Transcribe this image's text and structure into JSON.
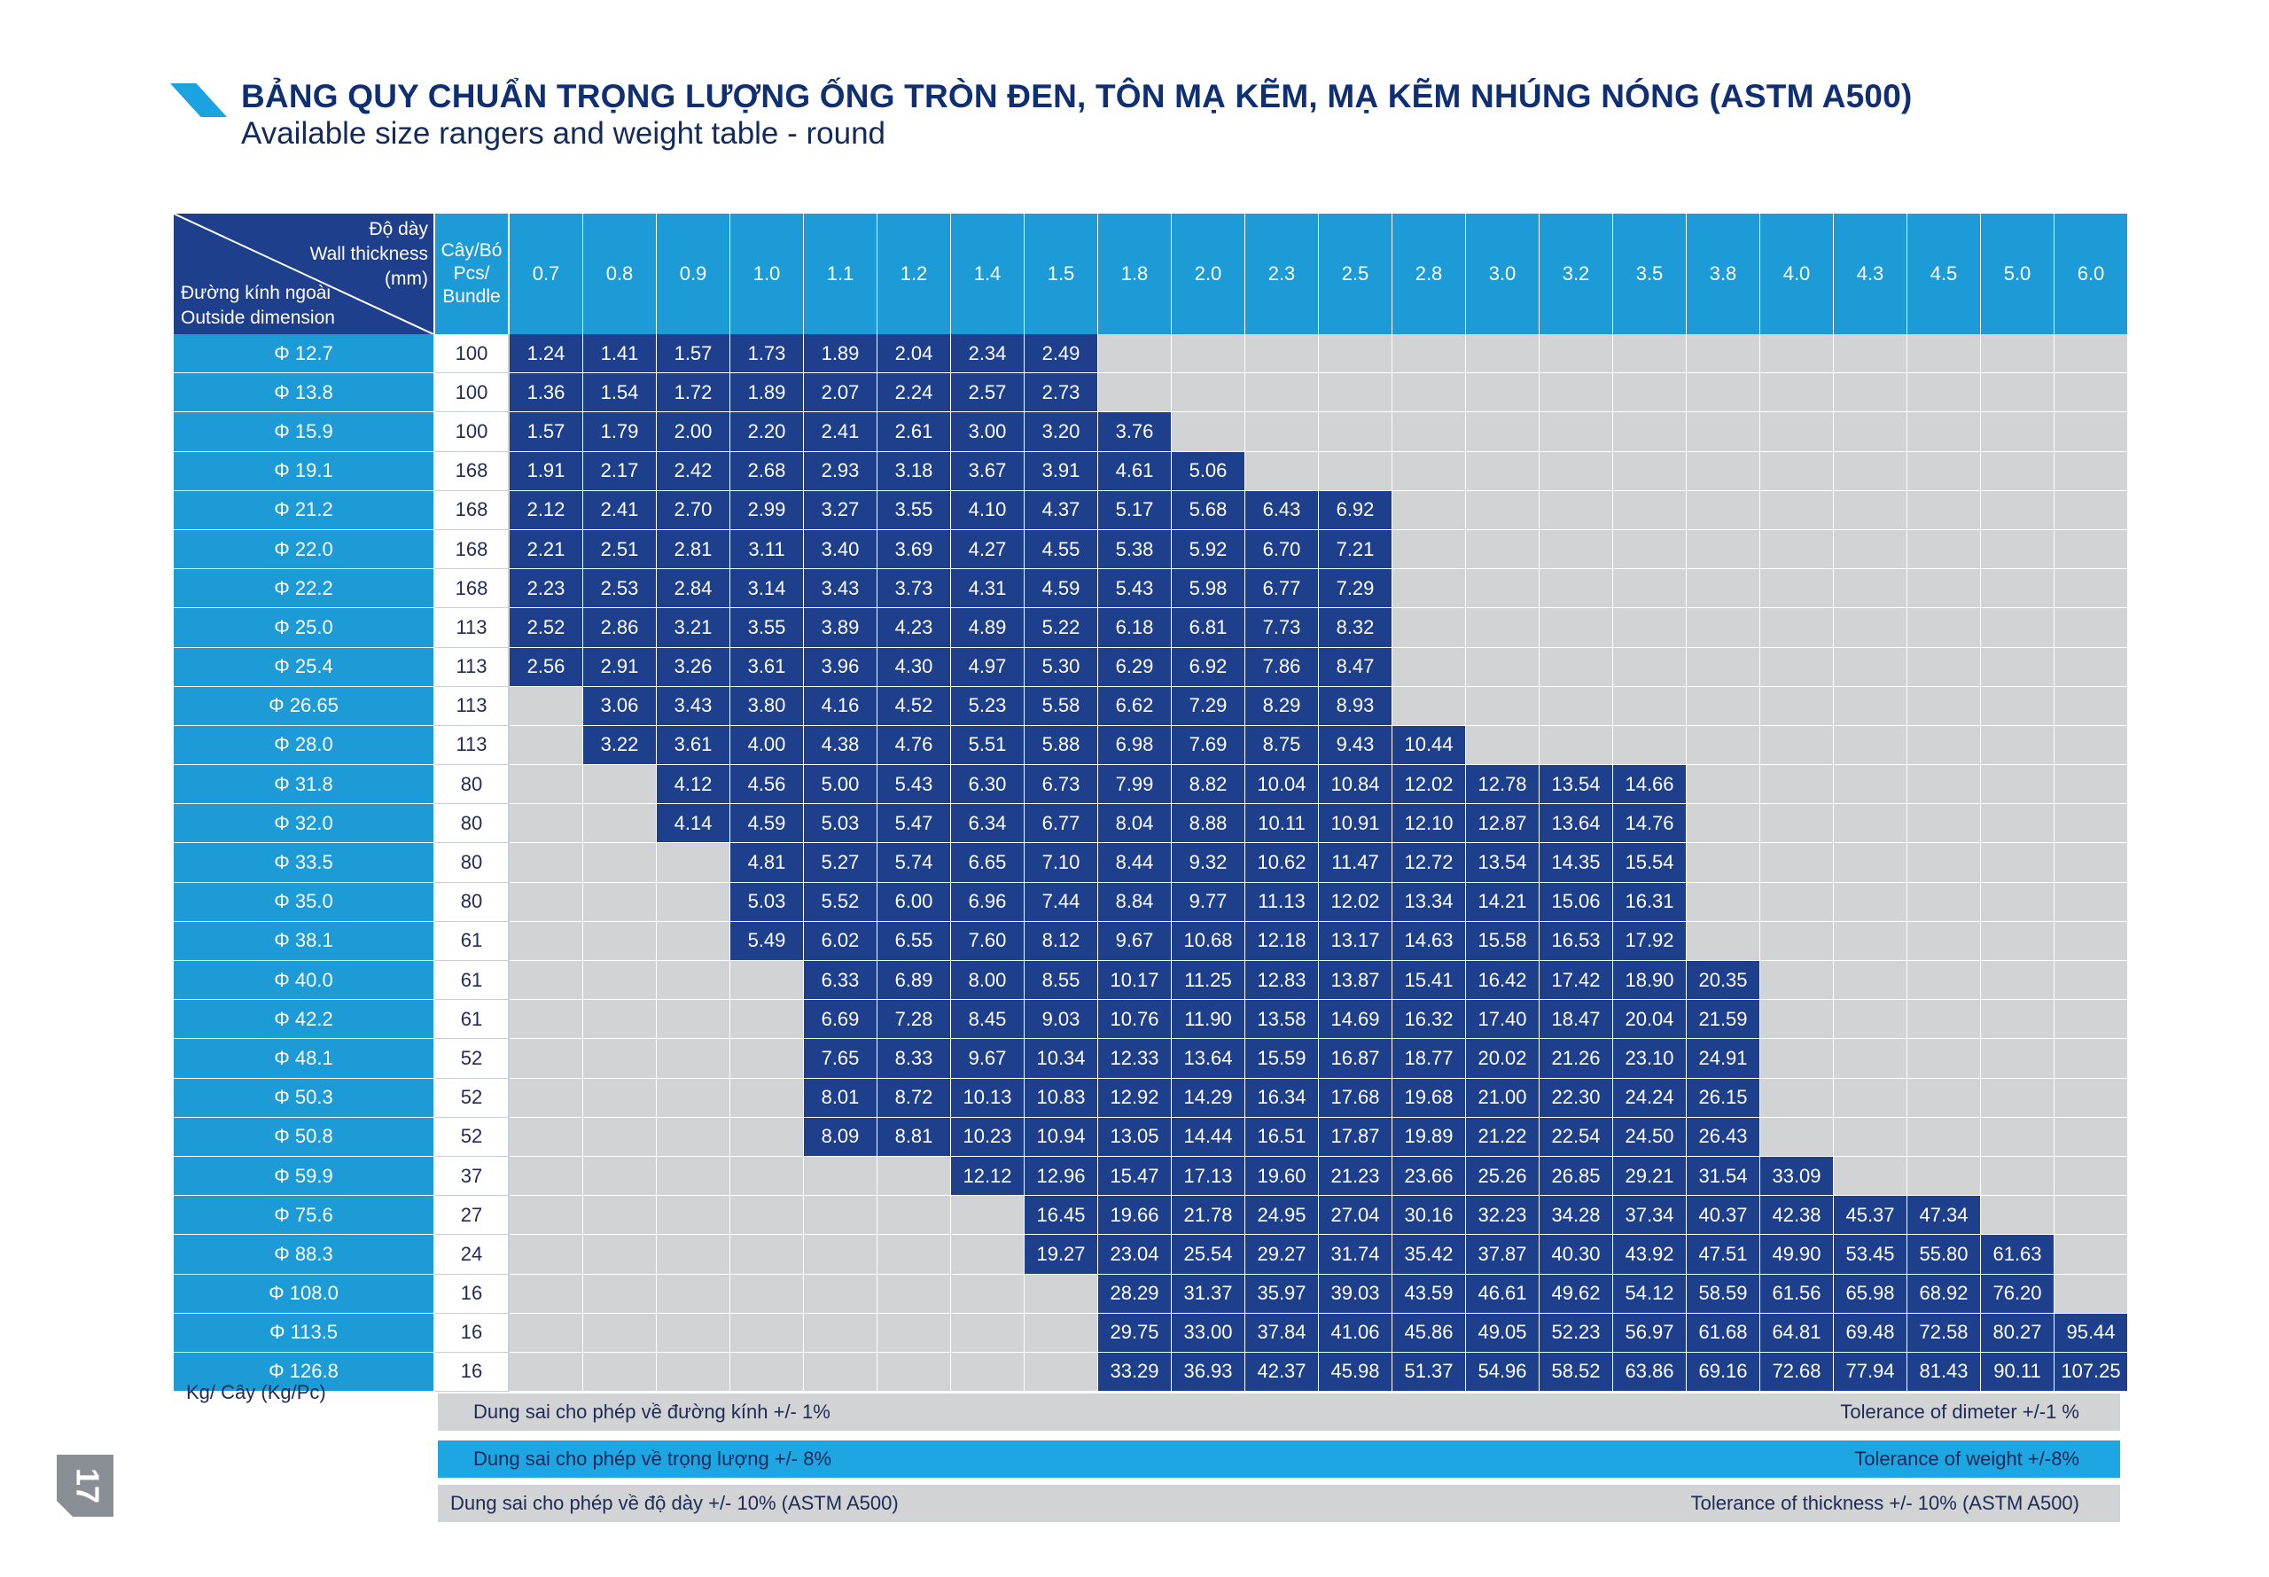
{
  "colors": {
    "navy": "#1e3f8b",
    "blue": "#1c9bd7",
    "empty": "#d1d3d5",
    "title": "#0f2f74"
  },
  "header": {
    "title": "BẢNG QUY CHUẨN TRỌNG LƯỢNG ỐNG TRÒN ĐEN, TÔN MẠ KẼM, MẠ KẼM NHÚNG NÓNG (ASTM A500)",
    "subtitle": "Available size rangers and weight table - round"
  },
  "table": {
    "corner": {
      "wall_vi": "Độ dày",
      "wall_en": "Wall thickness",
      "wall_unit": "(mm)",
      "dia_vi": "Đường kính ngoài",
      "dia_en": "Outside dimension"
    },
    "bundle_header": [
      "Cây/Bó",
      "Pcs/",
      "Bundle"
    ],
    "thickness": [
      "0.7",
      "0.8",
      "0.9",
      "1.0",
      "1.1",
      "1.2",
      "1.4",
      "1.5",
      "1.8",
      "2.0",
      "2.3",
      "2.5",
      "2.8",
      "3.0",
      "3.2",
      "3.5",
      "3.8",
      "4.0",
      "4.3",
      "4.5",
      "5.0",
      "6.0"
    ],
    "rows": [
      {
        "size": "Φ 12.7",
        "bundle": "100",
        "values": [
          "1.24",
          "1.41",
          "1.57",
          "1.73",
          "1.89",
          "2.04",
          "2.34",
          "2.49",
          "",
          "",
          "",
          "",
          "",
          "",
          "",
          "",
          "",
          "",
          "",
          "",
          "",
          ""
        ]
      },
      {
        "size": "Φ 13.8",
        "bundle": "100",
        "values": [
          "1.36",
          "1.54",
          "1.72",
          "1.89",
          "2.07",
          "2.24",
          "2.57",
          "2.73",
          "",
          "",
          "",
          "",
          "",
          "",
          "",
          "",
          "",
          "",
          "",
          "",
          "",
          ""
        ]
      },
      {
        "size": "Φ 15.9",
        "bundle": "100",
        "values": [
          "1.57",
          "1.79",
          "2.00",
          "2.20",
          "2.41",
          "2.61",
          "3.00",
          "3.20",
          "3.76",
          "",
          "",
          "",
          "",
          "",
          "",
          "",
          "",
          "",
          "",
          "",
          "",
          ""
        ]
      },
      {
        "size": "Φ 19.1",
        "bundle": "168",
        "values": [
          "1.91",
          "2.17",
          "2.42",
          "2.68",
          "2.93",
          "3.18",
          "3.67",
          "3.91",
          "4.61",
          "5.06",
          "",
          "",
          "",
          "",
          "",
          "",
          "",
          "",
          "",
          "",
          "",
          ""
        ]
      },
      {
        "size": "Φ 21.2",
        "bundle": "168",
        "values": [
          "2.12",
          "2.41",
          "2.70",
          "2.99",
          "3.27",
          "3.55",
          "4.10",
          "4.37",
          "5.17",
          "5.68",
          "6.43",
          "6.92",
          "",
          "",
          "",
          "",
          "",
          "",
          "",
          "",
          "",
          ""
        ]
      },
      {
        "size": "Φ 22.0",
        "bundle": "168",
        "values": [
          "2.21",
          "2.51",
          "2.81",
          "3.11",
          "3.40",
          "3.69",
          "4.27",
          "4.55",
          "5.38",
          "5.92",
          "6.70",
          "7.21",
          "",
          "",
          "",
          "",
          "",
          "",
          "",
          "",
          "",
          ""
        ]
      },
      {
        "size": "Φ 22.2",
        "bundle": "168",
        "values": [
          "2.23",
          "2.53",
          "2.84",
          "3.14",
          "3.43",
          "3.73",
          "4.31",
          "4.59",
          "5.43",
          "5.98",
          "6.77",
          "7.29",
          "",
          "",
          "",
          "",
          "",
          "",
          "",
          "",
          "",
          ""
        ]
      },
      {
        "size": "Φ 25.0",
        "bundle": "113",
        "values": [
          "2.52",
          "2.86",
          "3.21",
          "3.55",
          "3.89",
          "4.23",
          "4.89",
          "5.22",
          "6.18",
          "6.81",
          "7.73",
          "8.32",
          "",
          "",
          "",
          "",
          "",
          "",
          "",
          "",
          "",
          ""
        ]
      },
      {
        "size": "Φ 25.4",
        "bundle": "113",
        "values": [
          "2.56",
          "2.91",
          "3.26",
          "3.61",
          "3.96",
          "4.30",
          "4.97",
          "5.30",
          "6.29",
          "6.92",
          "7.86",
          "8.47",
          "",
          "",
          "",
          "",
          "",
          "",
          "",
          "",
          "",
          ""
        ]
      },
      {
        "size": "Φ 26.65",
        "bundle": "113",
        "values": [
          "",
          "3.06",
          "3.43",
          "3.80",
          "4.16",
          "4.52",
          "5.23",
          "5.58",
          "6.62",
          "7.29",
          "8.29",
          "8.93",
          "",
          "",
          "",
          "",
          "",
          "",
          "",
          "",
          "",
          ""
        ]
      },
      {
        "size": "Φ 28.0",
        "bundle": "113",
        "values": [
          "",
          "3.22",
          "3.61",
          "4.00",
          "4.38",
          "4.76",
          "5.51",
          "5.88",
          "6.98",
          "7.69",
          "8.75",
          "9.43",
          "10.44",
          "",
          "",
          "",
          "",
          "",
          "",
          "",
          "",
          ""
        ]
      },
      {
        "size": "Φ 31.8",
        "bundle": "80",
        "values": [
          "",
          "",
          "4.12",
          "4.56",
          "5.00",
          "5.43",
          "6.30",
          "6.73",
          "7.99",
          "8.82",
          "10.04",
          "10.84",
          "12.02",
          "12.78",
          "13.54",
          "14.66",
          "",
          "",
          "",
          "",
          "",
          ""
        ]
      },
      {
        "size": "Φ 32.0",
        "bundle": "80",
        "values": [
          "",
          "",
          "4.14",
          "4.59",
          "5.03",
          "5.47",
          "6.34",
          "6.77",
          "8.04",
          "8.88",
          "10.11",
          "10.91",
          "12.10",
          "12.87",
          "13.64",
          "14.76",
          "",
          "",
          "",
          "",
          "",
          ""
        ]
      },
      {
        "size": "Φ 33.5",
        "bundle": "80",
        "values": [
          "",
          "",
          "",
          "4.81",
          "5.27",
          "5.74",
          "6.65",
          "7.10",
          "8.44",
          "9.32",
          "10.62",
          "11.47",
          "12.72",
          "13.54",
          "14.35",
          "15.54",
          "",
          "",
          "",
          "",
          "",
          ""
        ]
      },
      {
        "size": "Φ 35.0",
        "bundle": "80",
        "values": [
          "",
          "",
          "",
          "5.03",
          "5.52",
          "6.00",
          "6.96",
          "7.44",
          "8.84",
          "9.77",
          "11.13",
          "12.02",
          "13.34",
          "14.21",
          "15.06",
          "16.31",
          "",
          "",
          "",
          "",
          "",
          ""
        ]
      },
      {
        "size": "Φ 38.1",
        "bundle": "61",
        "values": [
          "",
          "",
          "",
          "5.49",
          "6.02",
          "6.55",
          "7.60",
          "8.12",
          "9.67",
          "10.68",
          "12.18",
          "13.17",
          "14.63",
          "15.58",
          "16.53",
          "17.92",
          "",
          "",
          "",
          "",
          "",
          ""
        ]
      },
      {
        "size": "Φ 40.0",
        "bundle": "61",
        "values": [
          "",
          "",
          "",
          "",
          "6.33",
          "6.89",
          "8.00",
          "8.55",
          "10.17",
          "11.25",
          "12.83",
          "13.87",
          "15.41",
          "16.42",
          "17.42",
          "18.90",
          "20.35",
          "",
          "",
          "",
          "",
          ""
        ]
      },
      {
        "size": "Φ 42.2",
        "bundle": "61",
        "values": [
          "",
          "",
          "",
          "",
          "6.69",
          "7.28",
          "8.45",
          "9.03",
          "10.76",
          "11.90",
          "13.58",
          "14.69",
          "16.32",
          "17.40",
          "18.47",
          "20.04",
          "21.59",
          "",
          "",
          "",
          "",
          ""
        ]
      },
      {
        "size": "Φ 48.1",
        "bundle": "52",
        "values": [
          "",
          "",
          "",
          "",
          "7.65",
          "8.33",
          "9.67",
          "10.34",
          "12.33",
          "13.64",
          "15.59",
          "16.87",
          "18.77",
          "20.02",
          "21.26",
          "23.10",
          "24.91",
          "",
          "",
          "",
          "",
          ""
        ]
      },
      {
        "size": "Φ 50.3",
        "bundle": "52",
        "values": [
          "",
          "",
          "",
          "",
          "8.01",
          "8.72",
          "10.13",
          "10.83",
          "12.92",
          "14.29",
          "16.34",
          "17.68",
          "19.68",
          "21.00",
          "22.30",
          "24.24",
          "26.15",
          "",
          "",
          "",
          "",
          ""
        ]
      },
      {
        "size": "Φ 50.8",
        "bundle": "52",
        "values": [
          "",
          "",
          "",
          "",
          "8.09",
          "8.81",
          "10.23",
          "10.94",
          "13.05",
          "14.44",
          "16.51",
          "17.87",
          "19.89",
          "21.22",
          "22.54",
          "24.50",
          "26.43",
          "",
          "",
          "",
          "",
          ""
        ]
      },
      {
        "size": "Φ 59.9",
        "bundle": "37",
        "values": [
          "",
          "",
          "",
          "",
          "",
          "",
          "12.12",
          "12.96",
          "15.47",
          "17.13",
          "19.60",
          "21.23",
          "23.66",
          "25.26",
          "26.85",
          "29.21",
          "31.54",
          "33.09",
          "",
          "",
          "",
          ""
        ]
      },
      {
        "size": "Φ 75.6",
        "bundle": "27",
        "values": [
          "",
          "",
          "",
          "",
          "",
          "",
          "",
          "16.45",
          "19.66",
          "21.78",
          "24.95",
          "27.04",
          "30.16",
          "32.23",
          "34.28",
          "37.34",
          "40.37",
          "42.38",
          "45.37",
          "47.34",
          "",
          ""
        ]
      },
      {
        "size": "Φ 88.3",
        "bundle": "24",
        "values": [
          "",
          "",
          "",
          "",
          "",
          "",
          "",
          "19.27",
          "23.04",
          "25.54",
          "29.27",
          "31.74",
          "35.42",
          "37.87",
          "40.30",
          "43.92",
          "47.51",
          "49.90",
          "53.45",
          "55.80",
          "61.63",
          ""
        ]
      },
      {
        "size": "Φ 108.0",
        "bundle": "16",
        "values": [
          "",
          "",
          "",
          "",
          "",
          "",
          "",
          "",
          "28.29",
          "31.37",
          "35.97",
          "39.03",
          "43.59",
          "46.61",
          "49.62",
          "54.12",
          "58.59",
          "61.56",
          "65.98",
          "68.92",
          "76.20",
          ""
        ]
      },
      {
        "size": "Φ 113.5",
        "bundle": "16",
        "values": [
          "",
          "",
          "",
          "",
          "",
          "",
          "",
          "",
          "29.75",
          "33.00",
          "37.84",
          "41.06",
          "45.86",
          "49.05",
          "52.23",
          "56.97",
          "61.68",
          "64.81",
          "69.48",
          "72.58",
          "80.27",
          "95.44"
        ]
      },
      {
        "size": "Φ 126.8",
        "bundle": "16",
        "values": [
          "",
          "",
          "",
          "",
          "",
          "",
          "",
          "",
          "33.29",
          "36.93",
          "42.37",
          "45.98",
          "51.37",
          "54.96",
          "58.52",
          "63.86",
          "69.16",
          "72.68",
          "77.94",
          "81.43",
          "90.11",
          "107.25"
        ]
      }
    ]
  },
  "footer": {
    "unit": "Kg/ Cây (Kg/Pc)",
    "tolerances": [
      {
        "vi": "Dung sai cho phép về đường kính +/- 1%",
        "en": "Tolerance of dimeter +/-1 %"
      },
      {
        "vi": "Dung sai cho phép về trọng lượng +/- 8%",
        "en": "Tolerance of weight +/-8%"
      },
      {
        "vi": "Dung sai cho phép về độ dày +/- 10% (ASTM A500)",
        "en": "Tolerance of thickness +/- 10% (ASTM A500)"
      }
    ],
    "page_number": "17"
  }
}
